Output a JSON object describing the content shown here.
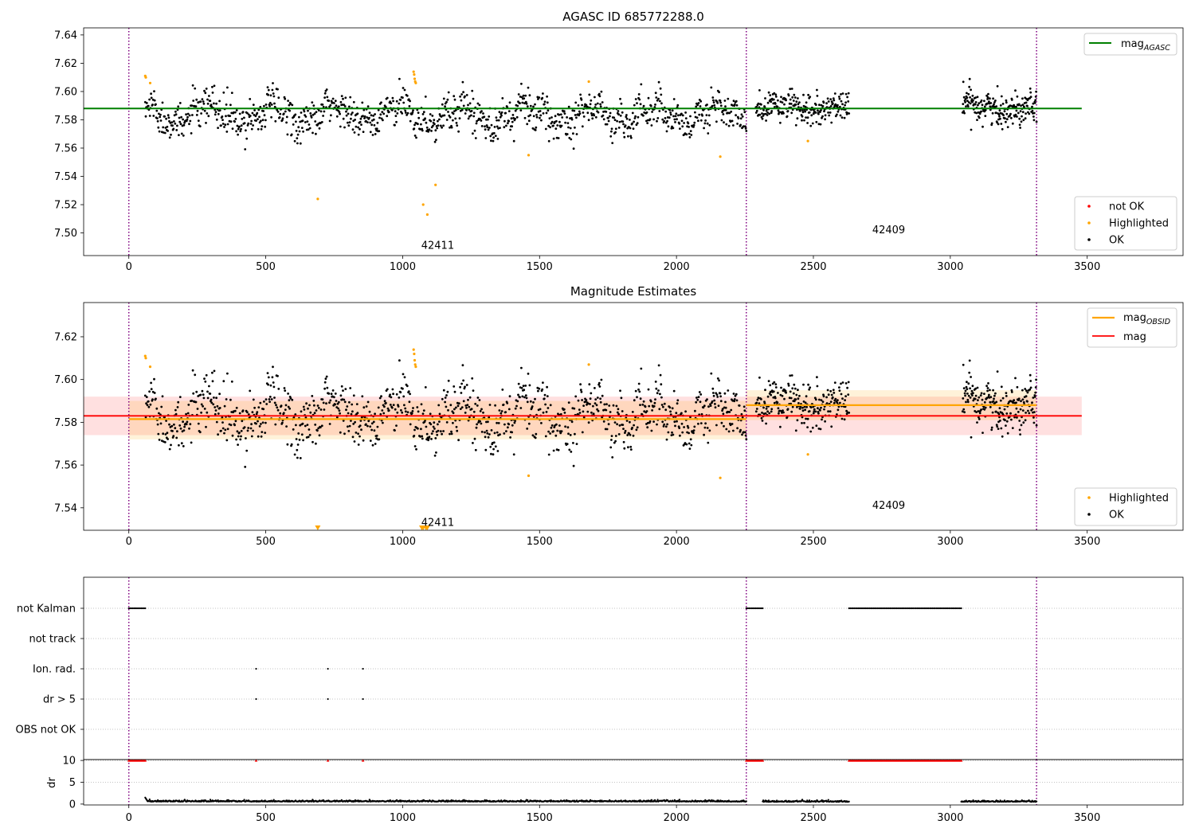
{
  "figure": {
    "colors": {
      "ok": "#000000",
      "highlighted": "#ffa500",
      "not_ok": "#ff0000",
      "agasc_line": "#008000",
      "mag_line": "#ff0000",
      "obsid_line": "#ffa500",
      "obs_boundary": "#800080",
      "grid": "#b0b0b0"
    }
  },
  "chart_data": [
    {
      "type": "scatter",
      "title": "AGASC ID 685772288.0",
      "xlabel": "",
      "ylabel": "",
      "xlim": [
        -165,
        3850
      ],
      "ylim": [
        7.484,
        7.645
      ],
      "xticks": [
        0,
        500,
        1000,
        1500,
        2000,
        2500,
        3000,
        3500
      ],
      "yticks": [
        7.5,
        7.52,
        7.54,
        7.56,
        7.58,
        7.6,
        7.62,
        7.64
      ],
      "ytick_labels": [
        "7.50",
        "7.52",
        "7.54",
        "7.56",
        "7.58",
        "7.60",
        "7.62",
        "7.64"
      ],
      "obs_boundaries": [
        0,
        2255,
        3315
      ],
      "obsid_labels": [
        {
          "text": "42411",
          "x": 1128,
          "y": 7.491
        },
        {
          "text": "42409",
          "x": 2775,
          "y": 7.502
        }
      ],
      "hlines": [
        {
          "name_base": "mag",
          "name_sub": "AGASC",
          "y": 7.588,
          "x_range": [
            -165,
            3480
          ],
          "color": "#008000"
        }
      ],
      "legend_top": {
        "placement": "top-right",
        "entries": [
          {
            "base": "mag",
            "sub": "AGASC",
            "color": "#008000"
          }
        ]
      },
      "legend_bottom": {
        "placement": "bottom-right",
        "entries": [
          {
            "label": "not OK",
            "color": "#ff0000"
          },
          {
            "label": "Highlighted",
            "color": "#ffa500"
          },
          {
            "label": "OK",
            "color": "#000000"
          }
        ]
      },
      "highlighted": [
        [
          60,
          7.611
        ],
        [
          62,
          7.61
        ],
        [
          78,
          7.606
        ],
        [
          690,
          7.524
        ],
        [
          1040,
          7.614
        ],
        [
          1042,
          7.612
        ],
        [
          1044,
          7.609
        ],
        [
          1046,
          7.607
        ],
        [
          1048,
          7.606
        ],
        [
          1075,
          7.52
        ],
        [
          1090,
          7.513
        ],
        [
          1120,
          7.534
        ],
        [
          1460,
          7.555
        ],
        [
          1680,
          7.607
        ],
        [
          2160,
          7.554
        ],
        [
          2480,
          7.565
        ]
      ],
      "ok_segments": [
        {
          "x_start": 60,
          "x_end": 2255,
          "n": 1150,
          "mean": 7.5835,
          "spread": 0.0085,
          "wave": 0.006
        },
        {
          "x_start": 2290,
          "x_end": 2630,
          "n": 230,
          "mean": 7.588,
          "spread": 0.007,
          "wave": 0.003
        },
        {
          "x_start": 3045,
          "x_end": 3315,
          "n": 200,
          "mean": 7.589,
          "spread": 0.0075,
          "wave": 0.003
        }
      ]
    },
    {
      "type": "scatter",
      "title": "Magnitude Estimates",
      "xlabel": "",
      "ylabel": "",
      "xlim": [
        -165,
        3850
      ],
      "ylim": [
        7.5295,
        7.636
      ],
      "xticks": [
        0,
        500,
        1000,
        1500,
        2000,
        2500,
        3000,
        3500
      ],
      "yticks": [
        7.54,
        7.56,
        7.58,
        7.6,
        7.62
      ],
      "ytick_labels": [
        "7.54",
        "7.56",
        "7.58",
        "7.60",
        "7.62"
      ],
      "obs_boundaries": [
        0,
        2255,
        3315
      ],
      "obsid_labels": [
        {
          "text": "42411",
          "x": 1128,
          "y": 7.533
        },
        {
          "text": "42409",
          "x": 2775,
          "y": 7.541
        }
      ],
      "mag_line": {
        "name": "mag",
        "y": 7.583,
        "band": [
          7.574,
          7.592
        ],
        "x_range": [
          -165,
          3480
        ],
        "color": "#ff0000"
      },
      "obsid_lines": [
        {
          "y": 7.5815,
          "band": [
            7.572,
            7.59
          ],
          "x_range": [
            0,
            2255
          ]
        },
        {
          "y": 7.588,
          "band": [
            7.581,
            7.595
          ],
          "x_range": [
            2255,
            3315
          ]
        }
      ],
      "limit_markers_x": [
        690,
        1070,
        1075,
        1085,
        1090
      ],
      "legend_top": {
        "placement": "top-right",
        "entries": [
          {
            "base": "mag",
            "sub": "OBSID",
            "color": "#ffa500"
          },
          {
            "base": "mag",
            "sub": "",
            "color": "#ff0000"
          }
        ]
      },
      "legend_bottom": {
        "placement": "bottom-right",
        "entries": [
          {
            "label": "Highlighted",
            "color": "#ffa500"
          },
          {
            "label": "OK",
            "color": "#000000"
          }
        ]
      },
      "highlighted": [
        [
          60,
          7.611
        ],
        [
          62,
          7.61
        ],
        [
          78,
          7.606
        ],
        [
          1040,
          7.614
        ],
        [
          1042,
          7.612
        ],
        [
          1044,
          7.609
        ],
        [
          1046,
          7.607
        ],
        [
          1048,
          7.606
        ],
        [
          1460,
          7.555
        ],
        [
          1680,
          7.607
        ],
        [
          2160,
          7.554
        ],
        [
          2480,
          7.565
        ]
      ],
      "ok_segments": [
        {
          "x_start": 60,
          "x_end": 2255,
          "n": 1150,
          "mean": 7.5835,
          "spread": 0.0085,
          "wave": 0.006
        },
        {
          "x_start": 2290,
          "x_end": 2630,
          "n": 230,
          "mean": 7.588,
          "spread": 0.007,
          "wave": 0.003
        },
        {
          "x_start": 3045,
          "x_end": 3315,
          "n": 200,
          "mean": 7.589,
          "spread": 0.0075,
          "wave": 0.003
        }
      ]
    },
    {
      "type": "scatter",
      "title": "",
      "xlabel": "",
      "ylabel": "",
      "xlim": [
        -165,
        3850
      ],
      "categories": [
        "not Kalman",
        "not track",
        "Ion. rad.",
        "dr > 5",
        "OBS not OK"
      ],
      "obs_boundaries": [
        0,
        2255,
        3315
      ],
      "flags": [
        {
          "category": "not Kalman",
          "ranges": [
            [
              0,
              60
            ],
            [
              2255,
              2315
            ],
            [
              2630,
              3040
            ]
          ],
          "points": []
        },
        {
          "category": "not track",
          "ranges": [],
          "points": []
        },
        {
          "category": "Ion. rad.",
          "ranges": [],
          "points": [
            465,
            727,
            855
          ]
        },
        {
          "category": "dr > 5",
          "ranges": [],
          "points": [
            465,
            727,
            855
          ]
        },
        {
          "category": "OBS not OK",
          "ranges": [],
          "points": []
        }
      ]
    },
    {
      "type": "scatter",
      "title": "",
      "xlabel": "",
      "ylabel": "dr",
      "xlim": [
        -165,
        3850
      ],
      "ylim": [
        0,
        10
      ],
      "xticks": [
        0,
        500,
        1000,
        1500,
        2000,
        2500,
        3000,
        3500
      ],
      "yticks": [
        0,
        5,
        10
      ],
      "ytick_labels": [
        "0",
        "5",
        "10"
      ],
      "obs_boundaries": [
        0,
        2255,
        3315
      ],
      "capped_ranges": [
        [
          0,
          60
        ],
        [
          2255,
          2315
        ],
        [
          2630,
          3040
        ]
      ],
      "capped_points": [
        465,
        727,
        855
      ],
      "dr_segments": [
        {
          "x_start": 60,
          "x_end": 2255,
          "n": 1100,
          "mean": 0.55,
          "spread": 0.25
        },
        {
          "x_start": 2315,
          "x_end": 2630,
          "n": 160,
          "mean": 0.5,
          "spread": 0.25
        },
        {
          "x_start": 3040,
          "x_end": 3315,
          "n": 140,
          "mean": 0.5,
          "spread": 0.25
        }
      ]
    }
  ]
}
